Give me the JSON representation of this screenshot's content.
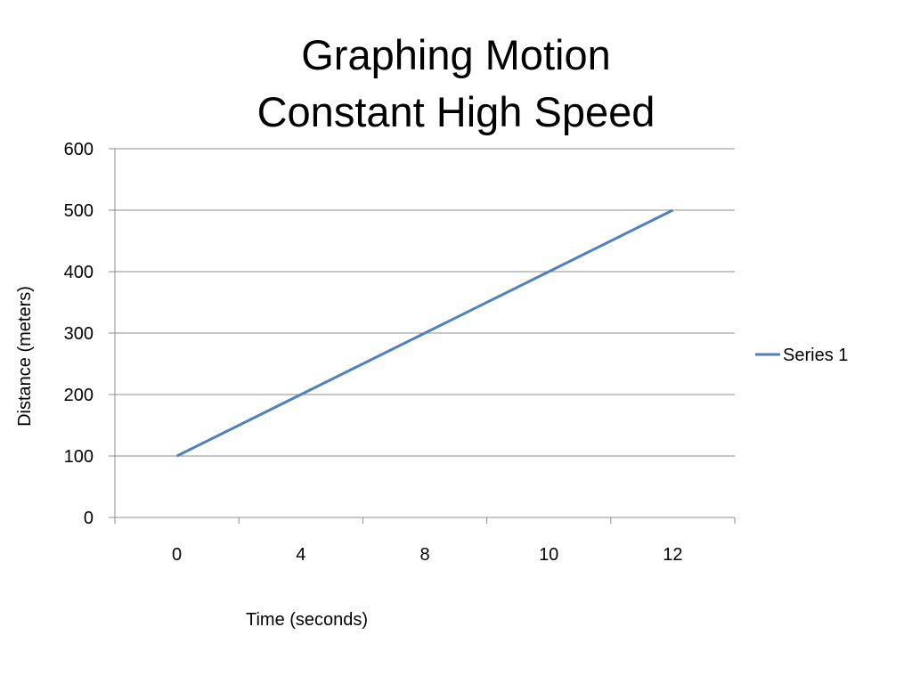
{
  "chart_data": {
    "type": "line",
    "title": [
      "Graphing Motion",
      "Constant High Speed"
    ],
    "xlabel": "Time (seconds)",
    "ylabel": "Distance (meters)",
    "categories": [
      "0",
      "4",
      "8",
      "10",
      "12"
    ],
    "y_ticks": [
      "0",
      "100",
      "200",
      "300",
      "400",
      "500",
      "600"
    ],
    "ylim": [
      0,
      600
    ],
    "grid": true,
    "legend": "right",
    "series": [
      {
        "name": "Series 1",
        "values": [
          100,
          200,
          300,
          400,
          500
        ],
        "color": "#4f81bd"
      }
    ]
  }
}
